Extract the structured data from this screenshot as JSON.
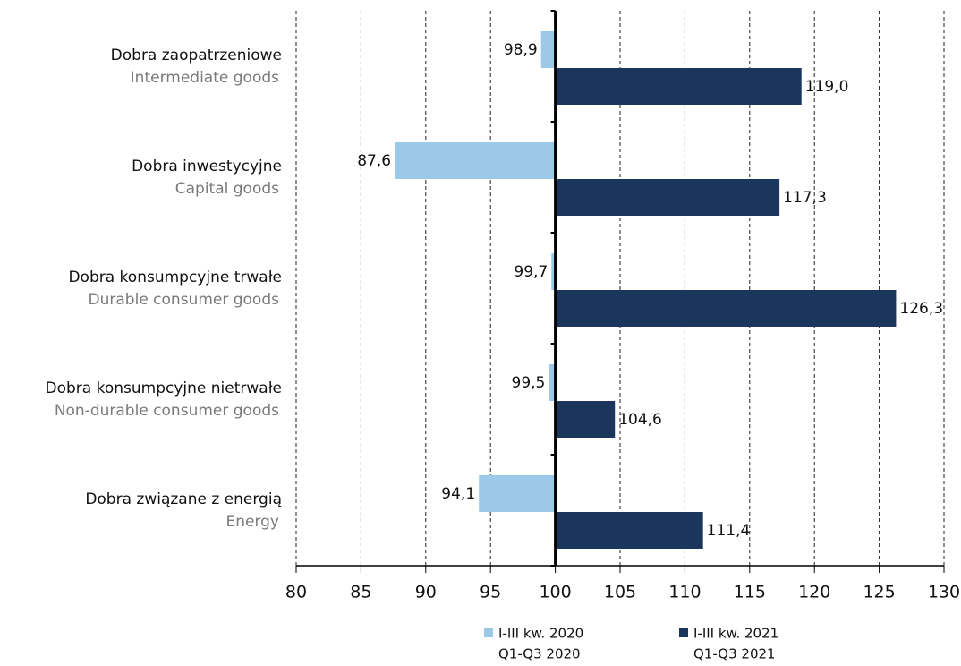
{
  "chart_data": {
    "type": "hbar",
    "categories": [
      "Dobra zaopatrzeniowe",
      "Dobra inwestycyjne",
      "Dobra konsumpcyjne trwałe",
      "Dobra konsumpcyjne nietrwałe",
      "Dobra związane z energią"
    ],
    "category_translations": [
      "Intermediate goods",
      "Capital goods",
      "Durable consumer goods",
      "Non-durable consumer goods",
      "Energy"
    ],
    "base": 100,
    "series": [
      {
        "name": "I-III kw. 2020",
        "translation": "Q1-Q3 2020",
        "color": "#9dc9e9",
        "values": [
          98.9,
          87.6,
          99.7,
          99.5,
          94.1
        ],
        "value_labels": [
          "98,9",
          "87,6",
          "99,7",
          "99,5",
          "94,1"
        ]
      },
      {
        "name": "I-III kw. 2021",
        "translation": "Q1-Q3 2021",
        "color": "#1b365d",
        "values": [
          119.0,
          117.3,
          126.3,
          104.6,
          111.4
        ],
        "value_labels": [
          "119,0",
          "117,3",
          "126,3",
          "104,6",
          "111,4"
        ]
      }
    ],
    "xlim": [
      80,
      130
    ],
    "xticks": [
      80,
      85,
      90,
      95,
      100,
      105,
      110,
      115,
      120,
      125,
      130
    ],
    "grid": true
  }
}
